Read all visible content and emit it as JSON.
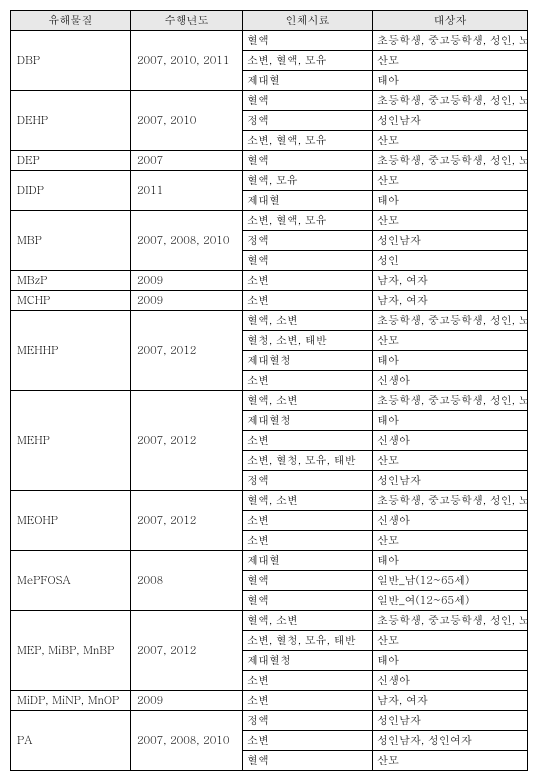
{
  "headers": [
    "유해물질",
    "수행년도",
    "인체시료",
    "대상자"
  ],
  "rows": [
    {
      "sub": "DBP",
      "year": "2007, 2010, 2011",
      "sample": "혈액",
      "target": "초등학생, 중고등학생, 성인, 노인"
    },
    {
      "sub": null,
      "year": null,
      "sample": "소변, 혈액, 모유",
      "target": "산모"
    },
    {
      "sub": null,
      "year": null,
      "sample": "제대혈",
      "target": "태아"
    },
    {
      "sub": "DEHP",
      "year": "2007, 2010",
      "sample": "혈액",
      "target": "초등학생, 중고등학생, 성인, 노인"
    },
    {
      "sub": null,
      "year": null,
      "sample": "정액",
      "target": "성인남자"
    },
    {
      "sub": null,
      "year": null,
      "sample": "소변, 혈액, 모유",
      "target": "산모"
    },
    {
      "sub": "DEP",
      "year": "2007",
      "sample": "혈액",
      "target": "초등학생, 중고등학생, 성인, 노인"
    },
    {
      "sub": "DIDP",
      "year": "2011",
      "sample": "혈액, 모유",
      "target": "산모"
    },
    {
      "sub": null,
      "year": null,
      "sample": "제대혈",
      "target": "태아"
    },
    {
      "sub": "MBP",
      "year": "2007, 2008, 2010",
      "sample": "소변, 혈액, 모유",
      "target": "산모"
    },
    {
      "sub": null,
      "year": null,
      "sample": "정액",
      "target": "성인남자"
    },
    {
      "sub": null,
      "year": null,
      "sample": "혈액",
      "target": "성인"
    },
    {
      "sub": "MBzP",
      "year": "2009",
      "sample": "소변",
      "target": "남자, 여자"
    },
    {
      "sub": "MCHP",
      "year": "2009",
      "sample": "소변",
      "target": "남자, 여자"
    },
    {
      "sub": "MEHHP",
      "year": "2007, 2012",
      "sample": "혈액, 소변",
      "target": "초등학생, 중고등학생, 성인, 노인"
    },
    {
      "sub": null,
      "year": null,
      "sample": "혈청, 소변, 태반",
      "target": "산모"
    },
    {
      "sub": null,
      "year": null,
      "sample": "제대혈청",
      "target": "태아"
    },
    {
      "sub": null,
      "year": null,
      "sample": "소변",
      "target": "신생아"
    },
    {
      "sub": "MEHP",
      "year": "2007, 2012",
      "sample": "혈액, 소변",
      "target": "초등학생, 중고등학생, 성인, 노인"
    },
    {
      "sub": null,
      "year": null,
      "sample": "제대혈청",
      "target": "태아"
    },
    {
      "sub": null,
      "year": null,
      "sample": "소변",
      "target": "신생아"
    },
    {
      "sub": null,
      "year": null,
      "sample": "소변, 혈청, 모유, 태반",
      "target": "산모"
    },
    {
      "sub": null,
      "year": null,
      "sample": "정액",
      "target": "성인남자"
    },
    {
      "sub": "MEOHP",
      "year": "2007, 2012",
      "sample": "혈액, 소변",
      "target": "초등학생, 중고등학생, 성인, 노인"
    },
    {
      "sub": null,
      "year": null,
      "sample": "소변",
      "target": "신생아"
    },
    {
      "sub": null,
      "year": null,
      "sample": "소변",
      "target": "산모"
    },
    {
      "sub": "MePFOSA",
      "year": "2008",
      "sample": "제대혈",
      "target": "태아"
    },
    {
      "sub": null,
      "year": null,
      "sample": "혈액",
      "target": "일반_남(12~65세)"
    },
    {
      "sub": null,
      "year": null,
      "sample": "혈액",
      "target": "일반_여(12~65세)"
    },
    {
      "sub": "MEP, MiBP, MnBP",
      "year": "2007, 2012",
      "sample": "혈액, 소변",
      "target": "초등학생, 중고등학생, 성인, 노인"
    },
    {
      "sub": null,
      "year": null,
      "sample": "소변, 혈청, 모유, 태반",
      "target": "산모"
    },
    {
      "sub": null,
      "year": null,
      "sample": "제대혈청",
      "target": "태아"
    },
    {
      "sub": null,
      "year": null,
      "sample": "소변",
      "target": "신생아"
    },
    {
      "sub": "MiDP, MiNP, MnOP",
      "year": "2009",
      "sample": "소변",
      "target": "남자, 여자"
    },
    {
      "sub": "PA",
      "year": "2007, 2008, 2010",
      "sample": "정액",
      "target": "성인남자"
    },
    {
      "sub": null,
      "year": null,
      "sample": "소변",
      "target": "성인남자, 성인여자"
    },
    {
      "sub": null,
      "year": null,
      "sample": "혈액",
      "target": "산모"
    }
  ]
}
